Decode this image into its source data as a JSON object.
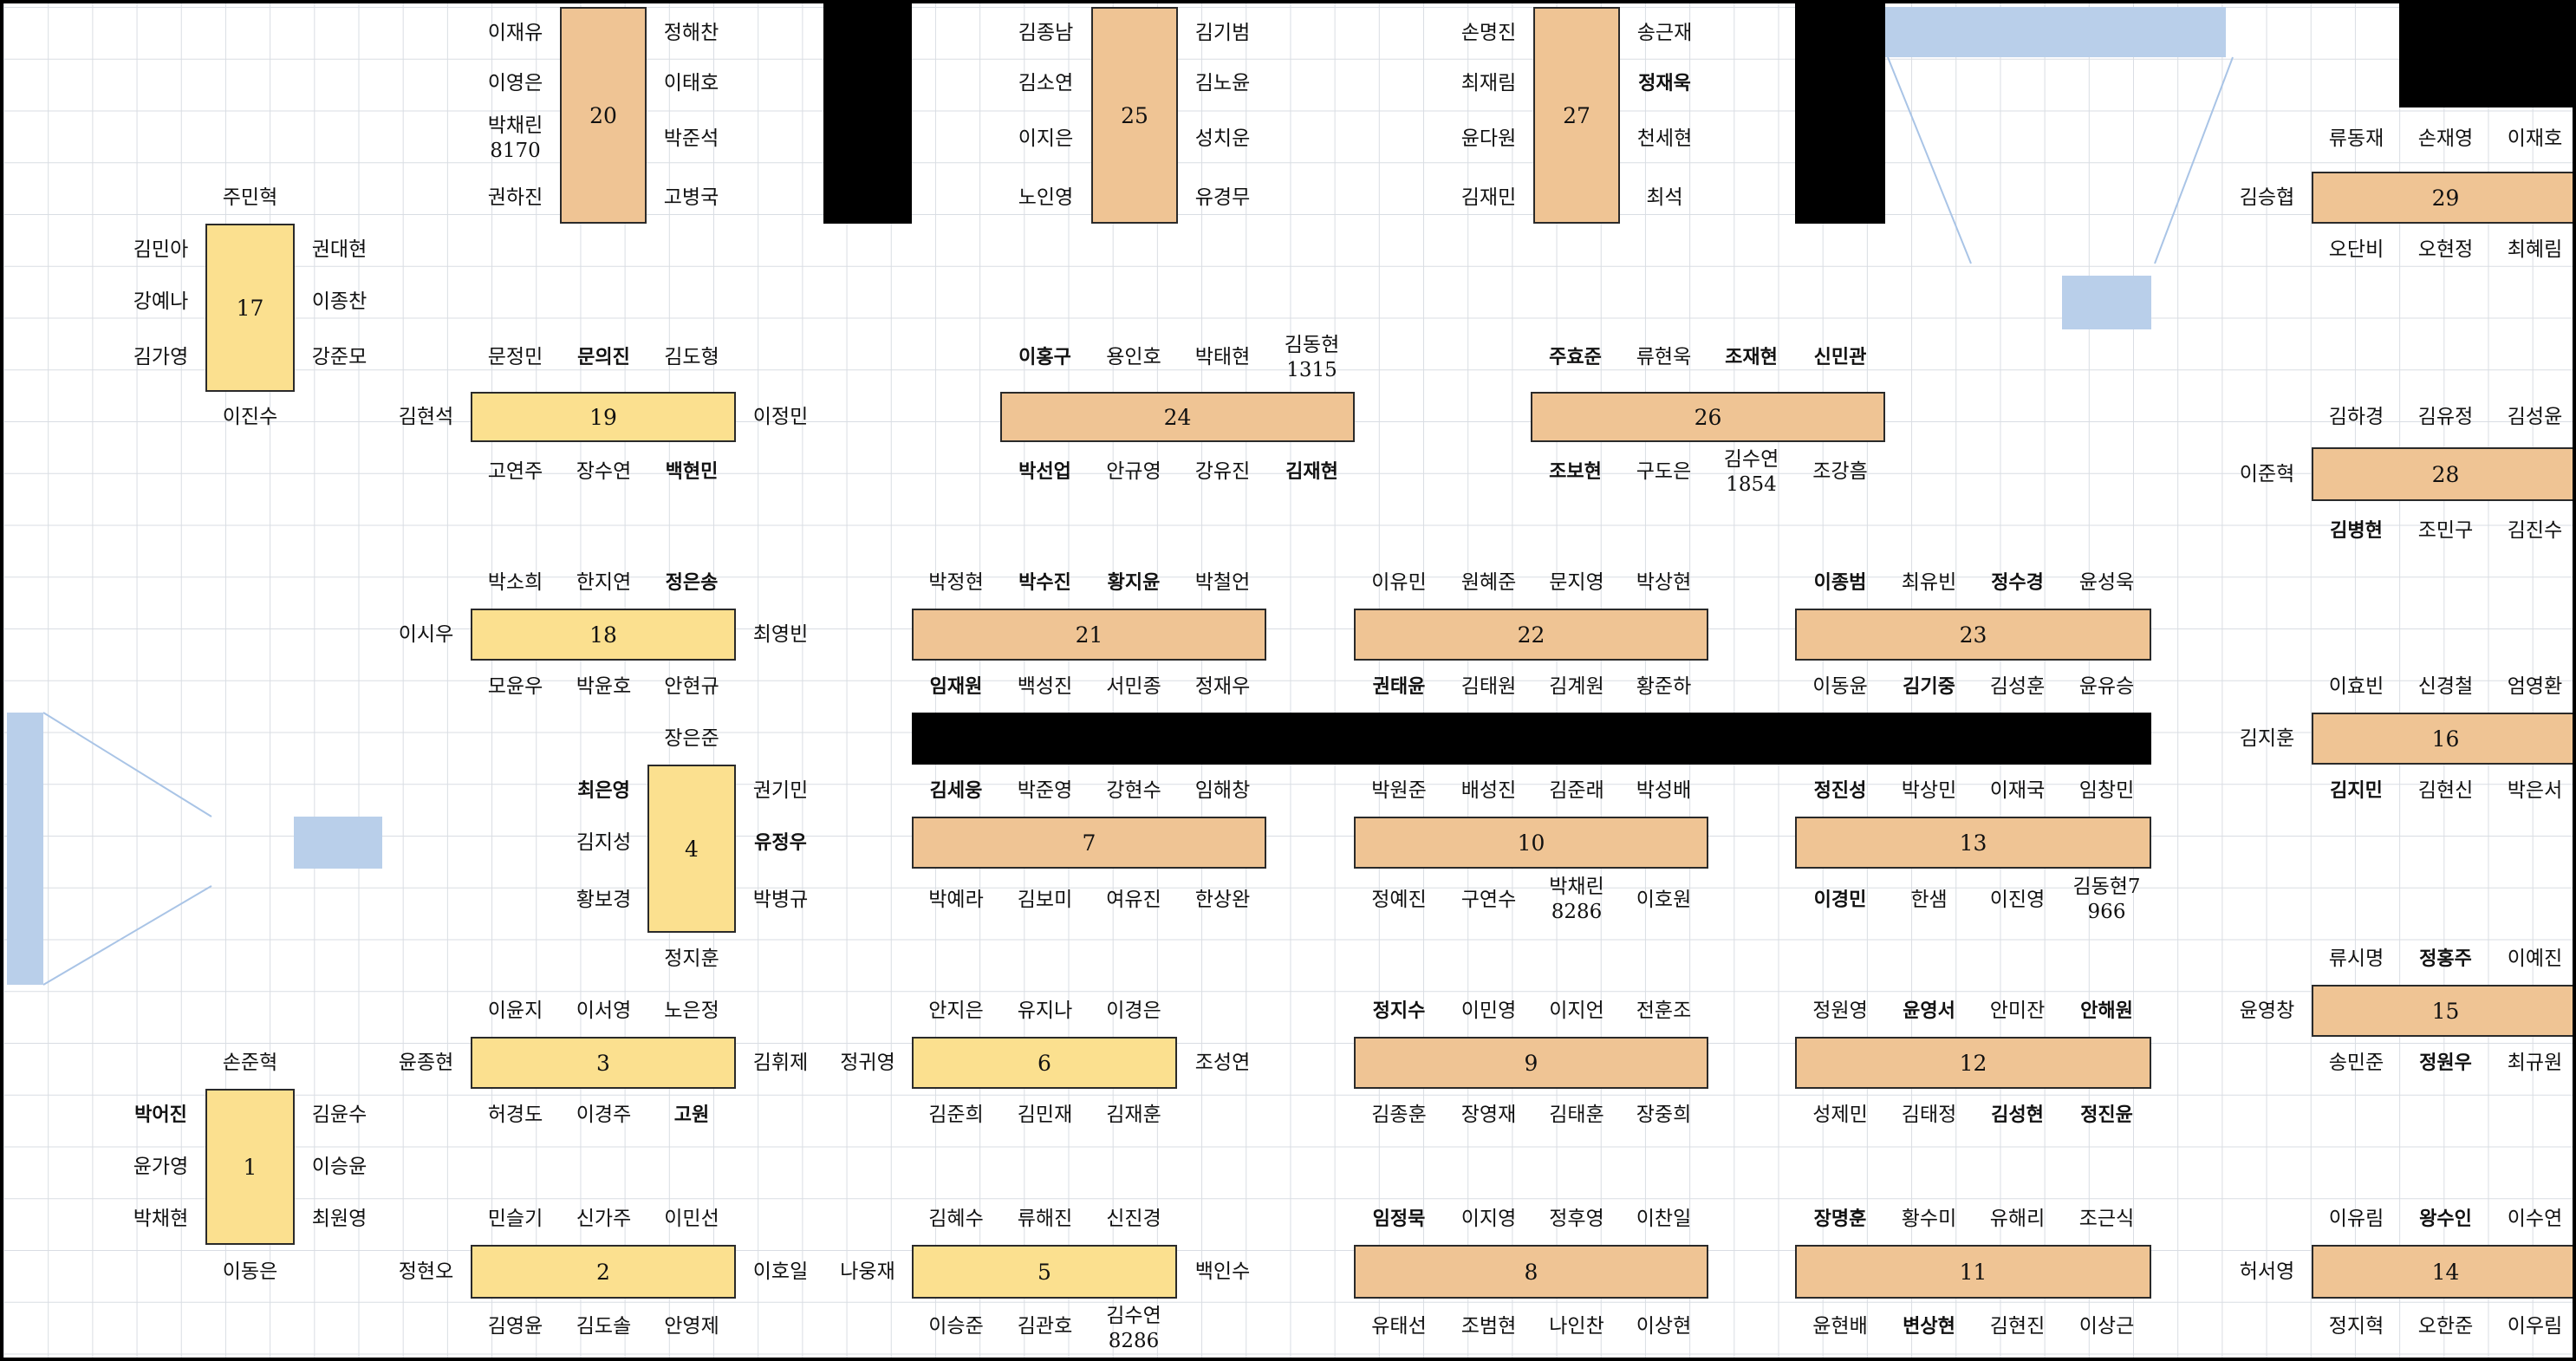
{
  "tables": [
    {
      "label": "20",
      "color": "orange"
    },
    {
      "label": "25",
      "color": "orange"
    },
    {
      "label": "27",
      "color": "orange"
    },
    {
      "label": "29",
      "color": "orange"
    },
    {
      "label": "17",
      "color": "yellow"
    },
    {
      "label": "19",
      "color": "yellow"
    },
    {
      "label": "24",
      "color": "orange"
    },
    {
      "label": "26",
      "color": "orange"
    },
    {
      "label": "28",
      "color": "orange"
    },
    {
      "label": "18",
      "color": "yellow"
    },
    {
      "label": "21",
      "color": "orange"
    },
    {
      "label": "22",
      "color": "orange"
    },
    {
      "label": "23",
      "color": "orange"
    },
    {
      "label": "16",
      "color": "orange"
    },
    {
      "label": "4",
      "color": "yellow"
    },
    {
      "label": "7",
      "color": "orange"
    },
    {
      "label": "10",
      "color": "orange"
    },
    {
      "label": "13",
      "color": "orange"
    },
    {
      "label": "15",
      "color": "orange"
    },
    {
      "label": "3",
      "color": "yellow"
    },
    {
      "label": "6",
      "color": "yellow"
    },
    {
      "label": "9",
      "color": "orange"
    },
    {
      "label": "12",
      "color": "orange"
    },
    {
      "label": "1",
      "color": "yellow"
    },
    {
      "label": "2",
      "color": "yellow"
    },
    {
      "label": "5",
      "color": "yellow"
    },
    {
      "label": "8",
      "color": "orange"
    },
    {
      "label": "11",
      "color": "orange"
    },
    {
      "label": "14",
      "color": "orange"
    }
  ],
  "names": [
    "이재유",
    "정해찬",
    "이영은",
    "이태호",
    "박채린\n8170",
    "박준석",
    "권하진",
    "고병국",
    "김종남",
    "김기범",
    "김소연",
    "김노윤",
    "이지은",
    "성치운",
    "노인영",
    "유경무",
    "손명진",
    "송근재",
    "최재림",
    "정재욱",
    "윤다원",
    "천세현",
    "김재민",
    "최석",
    "류동재",
    "손재영",
    "이재호",
    "김승협",
    "오단비",
    "오현정",
    "최혜림",
    "주민혁",
    "김민아",
    "권대현",
    "강예나",
    "이종찬",
    "김가영",
    "강준모",
    "이진수",
    "문정민",
    "문의진",
    "김도형",
    "김현석",
    "이정민",
    "고연주",
    "장수연",
    "백현민",
    "이홍구",
    "용인호",
    "박태현",
    "김동현\n1315",
    "박선업",
    "안규영",
    "강유진",
    "김재현",
    "주효준",
    "류현욱",
    "조재현",
    "신민관",
    "조보현",
    "구도은",
    "김수연\n1854",
    "조강흠",
    "김하경",
    "김유정",
    "김성윤",
    "이준혁",
    "김병현",
    "조민구",
    "김진수",
    "박소희",
    "한지연",
    "정은송",
    "이시우",
    "최영빈",
    "모윤우",
    "박윤호",
    "안현규",
    "박정현",
    "박수진",
    "황지윤",
    "박철언",
    "임재원",
    "백성진",
    "서민종",
    "정재우",
    "이유민",
    "원혜준",
    "문지영",
    "박상현",
    "권태윤",
    "김태원",
    "김계원",
    "황준하",
    "이종범",
    "최유빈",
    "정수경",
    "윤성욱",
    "이동윤",
    "김기중",
    "김성훈",
    "윤유승",
    "이효빈",
    "신경철",
    "엄영환",
    "김지훈",
    "김지민",
    "김현신",
    "박은서",
    "장은준",
    "최은영",
    "권기민",
    "김지성",
    "유정우",
    "황보경",
    "박병규",
    "정지훈",
    "김세웅",
    "박준영",
    "강현수",
    "임해창",
    "박예라",
    "김보미",
    "여유진",
    "한상완",
    "박원준",
    "배성진",
    "김준래",
    "박성배",
    "정예진",
    "구연수",
    "박채린\n8286",
    "이호원",
    "정진성",
    "박상민",
    "이재국",
    "임창민",
    "이경민",
    "한샘",
    "이진영",
    "김동현7\n966",
    "류시명",
    "정홍주",
    "이예진",
    "윤영창",
    "송민준",
    "정원우",
    "최규원",
    "이윤지",
    "이서영",
    "노은정",
    "윤종현",
    "김휘제",
    "허경도",
    "이경주",
    "고원",
    "안지은",
    "유지나",
    "이경은",
    "정귀영",
    "조성연",
    "김준희",
    "김민재",
    "김재훈",
    "정지수",
    "이민영",
    "이지언",
    "전훈조",
    "김종훈",
    "장영재",
    "김태훈",
    "장중희",
    "정원영",
    "윤영서",
    "안미잔",
    "안해원",
    "성제민",
    "김태정",
    "김성현",
    "정진윤",
    "손준혁",
    "박어진",
    "김윤수",
    "윤가영",
    "이승윤",
    "박채현",
    "최원영",
    "이동은",
    "민슬기",
    "신가주",
    "이민선",
    "정현오",
    "이호일",
    "김영윤",
    "김도솔",
    "안영제",
    "김혜수",
    "류해진",
    "신진경",
    "나웅재",
    "백인수",
    "이승준",
    "김관호",
    "김수연\n8286",
    "임정묵",
    "이지영",
    "정후영",
    "이찬일",
    "유태선",
    "조범현",
    "나인찬",
    "이상현",
    "장명훈",
    "황수미",
    "유해리",
    "조근식",
    "윤현배",
    "변상현",
    "김현진",
    "이상근",
    "이유림",
    "왕수인",
    "이수연",
    "허서영",
    "정지혁",
    "오한준",
    "이우림"
  ]
}
